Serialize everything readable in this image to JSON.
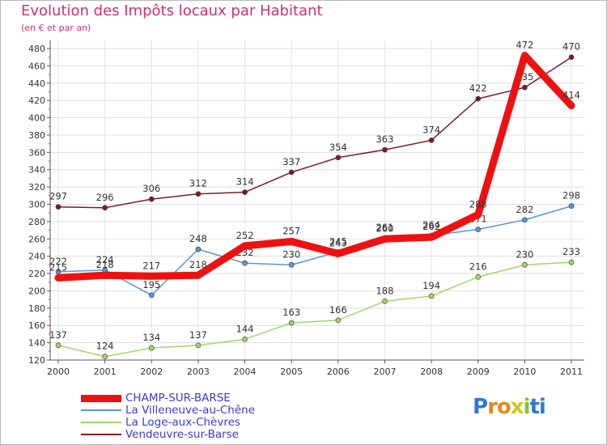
{
  "chart_data": {
    "type": "line",
    "title": "Evolution des Impôts locaux par Habitant",
    "subtitle": "(en € et par an)",
    "xlabel": "",
    "ylabel": "",
    "ylim": [
      120,
      480
    ],
    "y_ticks": [
      120,
      140,
      160,
      180,
      200,
      220,
      240,
      260,
      280,
      300,
      320,
      340,
      360,
      380,
      400,
      420,
      440,
      460,
      480
    ],
    "x": [
      "2000",
      "2001",
      "2002",
      "2003",
      "2004",
      "2005",
      "2006",
      "2007",
      "2008",
      "2009",
      "2010",
      "2011"
    ],
    "series": [
      {
        "name": "Vendeuvre-sur-Barse",
        "color": "#7a1d28",
        "values": [
          297,
          296,
          306,
          312,
          314,
          337,
          354,
          363,
          374,
          422,
          435,
          470
        ]
      },
      {
        "name": "La Loge-aux-Chèvres",
        "color": "#9fd86a",
        "values": [
          137,
          124,
          134,
          137,
          144,
          163,
          166,
          188,
          194,
          216,
          230,
          233
        ]
      },
      {
        "name": "La Villeneuve-au-Chêne",
        "color": "#5b96d4",
        "values": [
          222,
          224,
          195,
          248,
          232,
          230,
          245,
          261,
          264,
          271,
          282,
          298
        ]
      },
      {
        "name": "CHAMP-SUR-BARSE",
        "color": "#ee1111",
        "values": [
          215,
          218,
          217,
          218,
          252,
          257,
          243,
          260,
          262,
          288,
          472,
          414
        ]
      }
    ],
    "legend_position": "bottom-left"
  },
  "legend": [
    {
      "name": "CHAMP-SUR-BARSE",
      "color": "#ee1111"
    },
    {
      "name": "La Villeneuve-au-Chêne",
      "color": "#5b96d4"
    },
    {
      "name": "La Loge-aux-Chèvres",
      "color": "#9fd86a"
    },
    {
      "name": "Vendeuvre-sur-Barse",
      "color": "#7a1d28"
    }
  ],
  "logo": {
    "text": "Proxiti",
    "parts": [
      "P",
      "r",
      "o",
      "x",
      "i",
      "ti"
    ]
  }
}
